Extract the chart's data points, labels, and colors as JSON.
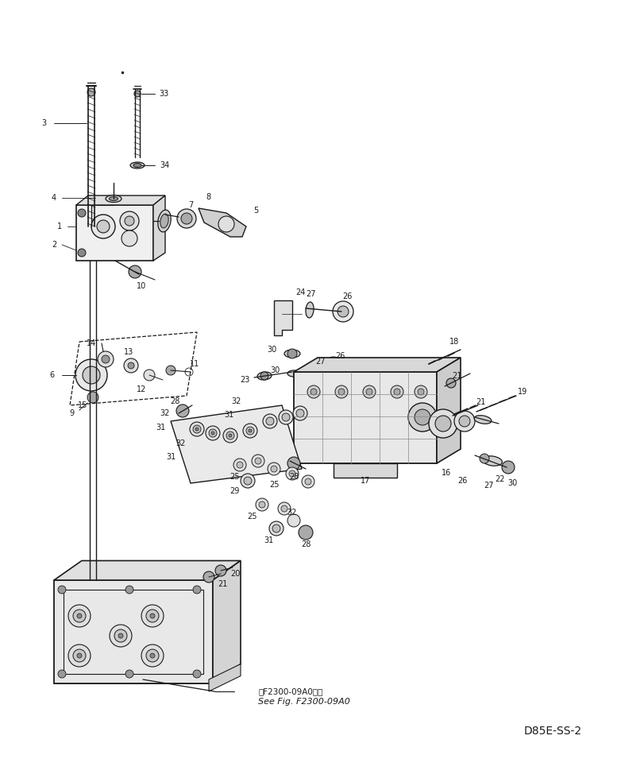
{
  "bg": "#ffffff",
  "fw": 7.82,
  "fh": 9.84,
  "dpi": 100,
  "lc": "#1a1a1a",
  "model_text": "D85E-SS-2",
  "ref1": "图F2300-09A0参照",
  "ref2": "See Fig. F2300-09A0",
  "dot": [
    0.197,
    0.944
  ]
}
